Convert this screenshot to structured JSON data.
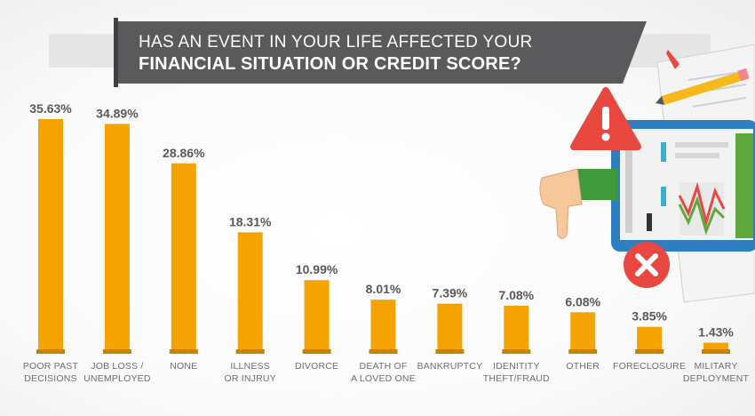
{
  "title": {
    "line1": "HAS AN EVENT IN YOUR LIFE AFFECTED YOUR",
    "line2": "FINANCIAL SITUATION OR CREDIT SCORE?"
  },
  "colors": {
    "bar": "#f5a300",
    "bar_base": "#c98100",
    "title_bg": "#5a5a5c"
  },
  "chart_data": {
    "type": "bar",
    "title": "HAS AN EVENT IN YOUR LIFE AFFECTED YOUR FINANCIAL SITUATION OR CREDIT SCORE?",
    "categories": [
      [
        "POOR PAST",
        "DECISIONS"
      ],
      [
        "JOB LOSS /",
        "UNEMPLOYED"
      ],
      [
        "NONE"
      ],
      [
        "ILLNESS",
        "OR INJRUY"
      ],
      [
        "DIVORCE"
      ],
      [
        "DEATH OF",
        "A LOVED ONE"
      ],
      [
        "BANKRUPTCY"
      ],
      [
        "IDENITITY",
        "THEFT/FRAUD"
      ],
      [
        "OTHER"
      ],
      [
        "FORECLOSURE"
      ],
      [
        "MILITARY",
        "DEPLOYMENT"
      ]
    ],
    "values": [
      35.63,
      34.89,
      28.86,
      18.31,
      10.99,
      8.01,
      7.39,
      7.08,
      6.08,
      3.85,
      1.43
    ],
    "value_labels": [
      "35.63%",
      "34.89%",
      "28.86%",
      "18.31%",
      "10.99%",
      "8.01%",
      "7.39%",
      "7.08%",
      "6.08%",
      "3.85%",
      "1.43%"
    ],
    "xlabel": "",
    "ylabel": "",
    "ylim": [
      0,
      35.63
    ],
    "grid": false,
    "legend": "none"
  }
}
